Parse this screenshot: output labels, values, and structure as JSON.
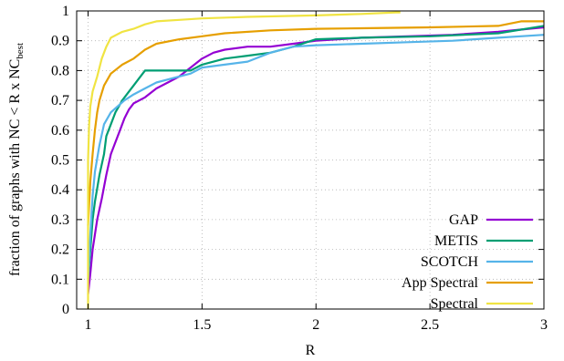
{
  "chart_data": {
    "type": "line",
    "xlabel": "R",
    "ylabel_parts": {
      "main": "fraction of graphs with NC < R x NC",
      "subscript": "best"
    },
    "xlim": [
      0.95,
      3
    ],
    "ylim": [
      0,
      1
    ],
    "xticks": [
      {
        "value": 1,
        "label": "1"
      },
      {
        "value": 1.5,
        "label": "1.5"
      },
      {
        "value": 2,
        "label": "2"
      },
      {
        "value": 2.5,
        "label": "2.5"
      },
      {
        "value": 3,
        "label": "3"
      }
    ],
    "yticks": [
      {
        "value": 0,
        "label": "0"
      },
      {
        "value": 0.1,
        "label": "0.1"
      },
      {
        "value": 0.2,
        "label": "0.2"
      },
      {
        "value": 0.3,
        "label": "0.3"
      },
      {
        "value": 0.4,
        "label": "0.4"
      },
      {
        "value": 0.5,
        "label": "0.5"
      },
      {
        "value": 0.6,
        "label": "0.6"
      },
      {
        "value": 0.7,
        "label": "0.7"
      },
      {
        "value": 0.8,
        "label": "0.8"
      },
      {
        "value": 0.9,
        "label": "0.9"
      },
      {
        "value": 1,
        "label": "1"
      }
    ],
    "grid": true,
    "legend_position": "bottom-right",
    "series": [
      {
        "name": "GAP",
        "color": "#9400d3",
        "points": [
          [
            1.0,
            0.05
          ],
          [
            1.01,
            0.12
          ],
          [
            1.02,
            0.2
          ],
          [
            1.04,
            0.3
          ],
          [
            1.06,
            0.37
          ],
          [
            1.08,
            0.45
          ],
          [
            1.1,
            0.52
          ],
          [
            1.12,
            0.56
          ],
          [
            1.14,
            0.6
          ],
          [
            1.16,
            0.64
          ],
          [
            1.18,
            0.67
          ],
          [
            1.2,
            0.69
          ],
          [
            1.25,
            0.71
          ],
          [
            1.3,
            0.74
          ],
          [
            1.35,
            0.76
          ],
          [
            1.4,
            0.78
          ],
          [
            1.45,
            0.81
          ],
          [
            1.5,
            0.84
          ],
          [
            1.55,
            0.86
          ],
          [
            1.6,
            0.87
          ],
          [
            1.7,
            0.88
          ],
          [
            1.8,
            0.88
          ],
          [
            1.9,
            0.89
          ],
          [
            2.0,
            0.9
          ],
          [
            2.2,
            0.91
          ],
          [
            2.4,
            0.915
          ],
          [
            2.6,
            0.92
          ],
          [
            2.8,
            0.93
          ],
          [
            3.0,
            0.945
          ]
        ]
      },
      {
        "name": "METIS",
        "color": "#009e73",
        "points": [
          [
            1.0,
            0.1
          ],
          [
            1.01,
            0.2
          ],
          [
            1.02,
            0.3
          ],
          [
            1.03,
            0.36
          ],
          [
            1.05,
            0.45
          ],
          [
            1.07,
            0.52
          ],
          [
            1.08,
            0.58
          ],
          [
            1.1,
            0.62
          ],
          [
            1.12,
            0.66
          ],
          [
            1.15,
            0.7
          ],
          [
            1.18,
            0.73
          ],
          [
            1.2,
            0.75
          ],
          [
            1.23,
            0.78
          ],
          [
            1.25,
            0.8
          ],
          [
            1.3,
            0.8
          ],
          [
            1.35,
            0.8
          ],
          [
            1.4,
            0.8
          ],
          [
            1.45,
            0.8
          ],
          [
            1.5,
            0.82
          ],
          [
            1.6,
            0.84
          ],
          [
            1.7,
            0.85
          ],
          [
            1.8,
            0.86
          ],
          [
            1.9,
            0.88
          ],
          [
            2.0,
            0.905
          ],
          [
            2.2,
            0.91
          ],
          [
            2.5,
            0.915
          ],
          [
            2.8,
            0.925
          ],
          [
            3.0,
            0.95
          ]
        ]
      },
      {
        "name": "SCOTCH",
        "color": "#56b4e9",
        "points": [
          [
            1.0,
            0.1
          ],
          [
            1.01,
            0.25
          ],
          [
            1.02,
            0.38
          ],
          [
            1.03,
            0.46
          ],
          [
            1.05,
            0.55
          ],
          [
            1.07,
            0.62
          ],
          [
            1.1,
            0.66
          ],
          [
            1.13,
            0.68
          ],
          [
            1.16,
            0.7
          ],
          [
            1.2,
            0.72
          ],
          [
            1.25,
            0.74
          ],
          [
            1.3,
            0.76
          ],
          [
            1.35,
            0.77
          ],
          [
            1.4,
            0.78
          ],
          [
            1.45,
            0.79
          ],
          [
            1.5,
            0.81
          ],
          [
            1.6,
            0.82
          ],
          [
            1.7,
            0.83
          ],
          [
            1.8,
            0.86
          ],
          [
            1.9,
            0.88
          ],
          [
            2.0,
            0.885
          ],
          [
            2.2,
            0.89
          ],
          [
            2.4,
            0.895
          ],
          [
            2.6,
            0.9
          ],
          [
            2.8,
            0.91
          ],
          [
            3.0,
            0.92
          ]
        ]
      },
      {
        "name": "App Spectral",
        "color": "#e69f00",
        "points": [
          [
            1.0,
            0.28
          ],
          [
            1.01,
            0.43
          ],
          [
            1.02,
            0.52
          ],
          [
            1.03,
            0.6
          ],
          [
            1.04,
            0.66
          ],
          [
            1.05,
            0.7
          ],
          [
            1.07,
            0.75
          ],
          [
            1.1,
            0.79
          ],
          [
            1.15,
            0.82
          ],
          [
            1.2,
            0.84
          ],
          [
            1.25,
            0.87
          ],
          [
            1.3,
            0.89
          ],
          [
            1.4,
            0.905
          ],
          [
            1.5,
            0.915
          ],
          [
            1.6,
            0.925
          ],
          [
            1.8,
            0.935
          ],
          [
            2.0,
            0.94
          ],
          [
            2.2,
            0.942
          ],
          [
            2.5,
            0.945
          ],
          [
            2.8,
            0.95
          ],
          [
            2.9,
            0.965
          ],
          [
            3.0,
            0.965
          ]
        ]
      },
      {
        "name": "Spectral",
        "color": "#f0e442",
        "points": [
          [
            1.0,
            0.0
          ],
          [
            1.0,
            0.5
          ],
          [
            1.005,
            0.62
          ],
          [
            1.01,
            0.68
          ],
          [
            1.02,
            0.73
          ],
          [
            1.04,
            0.78
          ],
          [
            1.06,
            0.84
          ],
          [
            1.08,
            0.88
          ],
          [
            1.1,
            0.91
          ],
          [
            1.15,
            0.93
          ],
          [
            1.2,
            0.94
          ],
          [
            1.25,
            0.955
          ],
          [
            1.3,
            0.965
          ],
          [
            1.4,
            0.97
          ],
          [
            1.5,
            0.975
          ],
          [
            1.7,
            0.98
          ],
          [
            2.0,
            0.985
          ],
          [
            2.2,
            0.99
          ],
          [
            2.35,
            0.995
          ],
          [
            2.37,
            0.995
          ]
        ]
      }
    ]
  }
}
